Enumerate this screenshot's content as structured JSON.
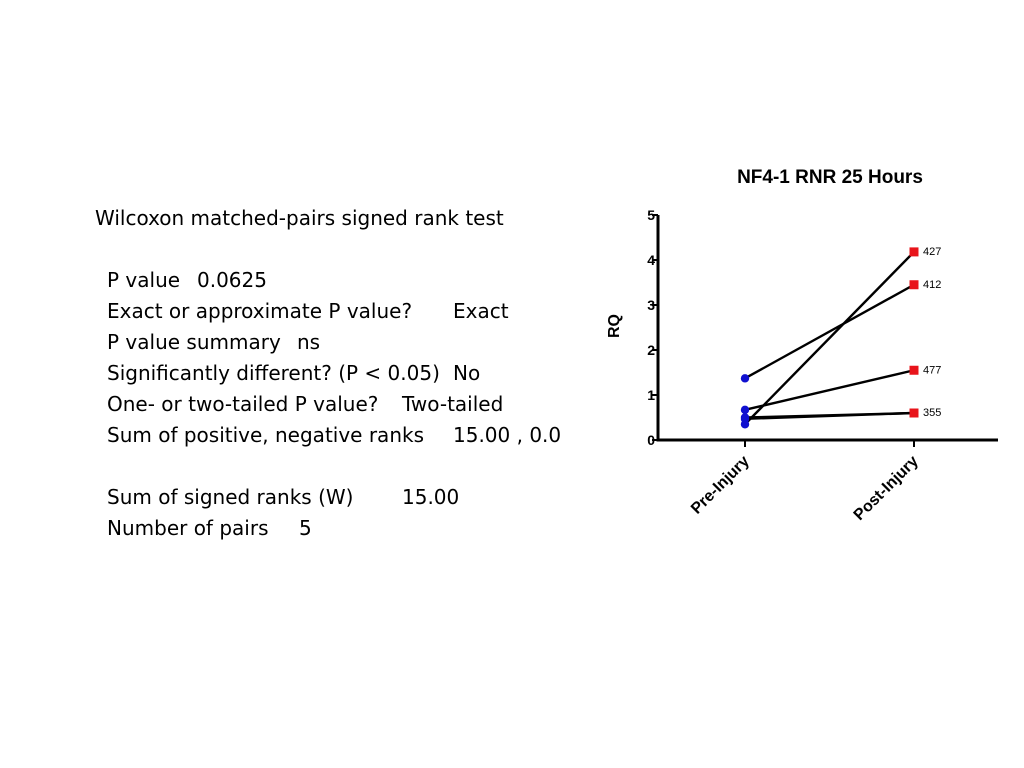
{
  "stats": {
    "heading": "Wilcoxon matched-pairs signed rank test",
    "rows": [
      {
        "label": "P value",
        "value": "0.0625"
      },
      {
        "label": "Exact or approximate P value?",
        "value": "Exact"
      },
      {
        "label": "P value summary",
        "value": "ns"
      },
      {
        "label": "Significantly different? (P < 0.05)",
        "value": "No"
      },
      {
        "label": "One- or two-tailed P value?",
        "value": "Two-tailed"
      },
      {
        "label": "Sum of positive, negative ranks",
        "value": "15.00 , 0.0"
      }
    ],
    "rows2": [
      {
        "label": "Sum of signed ranks (W)",
        "value": "15.00"
      },
      {
        "label": "Number of pairs",
        "value": "5"
      }
    ]
  },
  "chart_data": {
    "type": "line",
    "title": "NF4-1 RNR 25 Hours",
    "ylabel": "RQ",
    "xlabel": "",
    "categories": [
      "Pre-Injury",
      "Post-Injury"
    ],
    "ylim": [
      0,
      5
    ],
    "yticks": [
      0,
      1,
      2,
      3,
      4,
      5
    ],
    "grid": false,
    "series": [
      {
        "name": "427",
        "values": [
          0.35,
          4.18
        ]
      },
      {
        "name": "412",
        "values": [
          1.37,
          3.45
        ]
      },
      {
        "name": "477",
        "values": [
          0.67,
          1.55
        ]
      },
      {
        "name": "355",
        "values": [
          0.5,
          0.6
        ]
      },
      {
        "name": "",
        "values": [
          0.47,
          0.6
        ]
      }
    ],
    "colors": {
      "pre": "#1010d0",
      "post": "#e8141b",
      "line": "#000000"
    }
  }
}
